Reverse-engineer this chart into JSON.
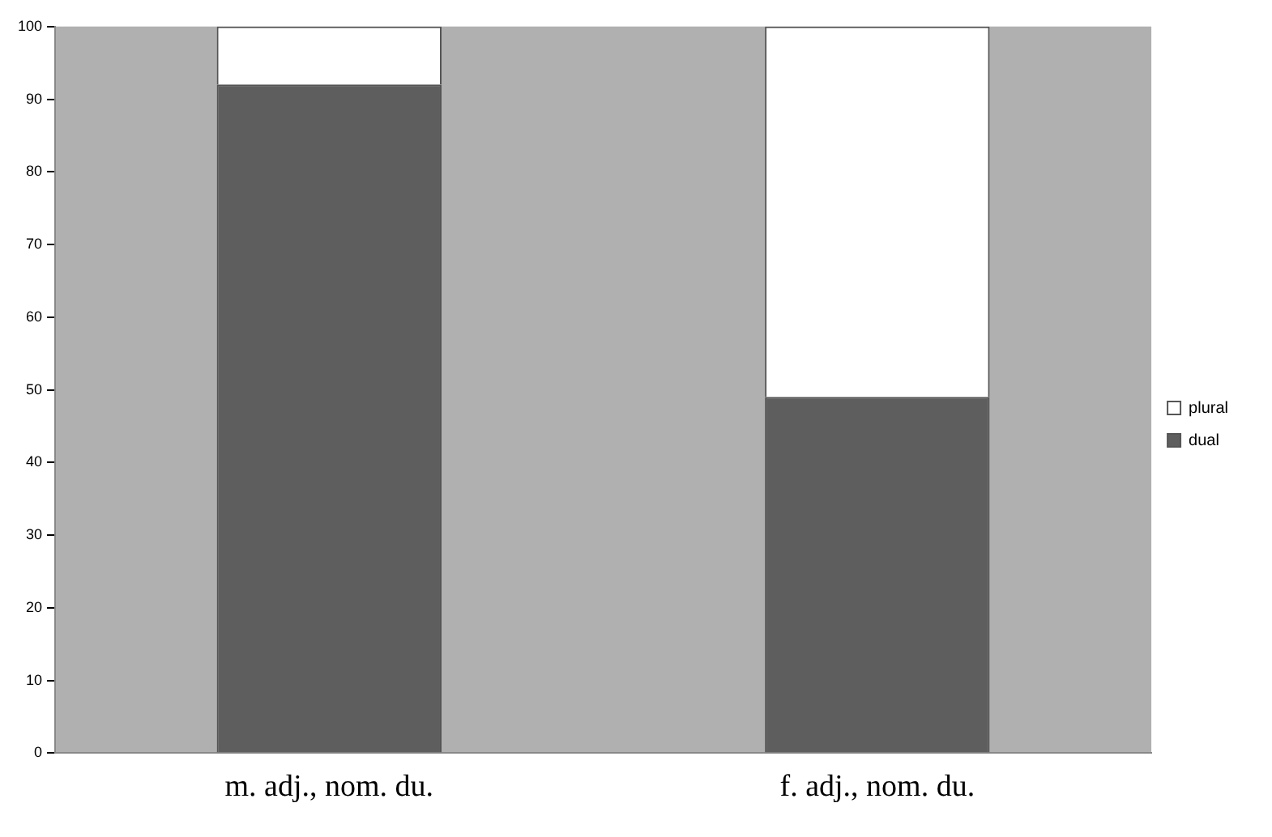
{
  "chart_data": {
    "type": "bar",
    "categories": [
      "m. adj., nom. du.",
      "f. adj., nom. du."
    ],
    "stacked": true,
    "series": [
      {
        "name": "dual",
        "color": "#5e5e5e",
        "values": [
          92,
          49
        ]
      },
      {
        "name": "plural",
        "color": "#ffffff",
        "values": [
          8,
          51
        ]
      }
    ],
    "ylim": [
      0,
      100
    ],
    "yticks": [
      0,
      10,
      20,
      30,
      40,
      50,
      60,
      70,
      80,
      90,
      100
    ],
    "grid": false,
    "legend": "right"
  }
}
